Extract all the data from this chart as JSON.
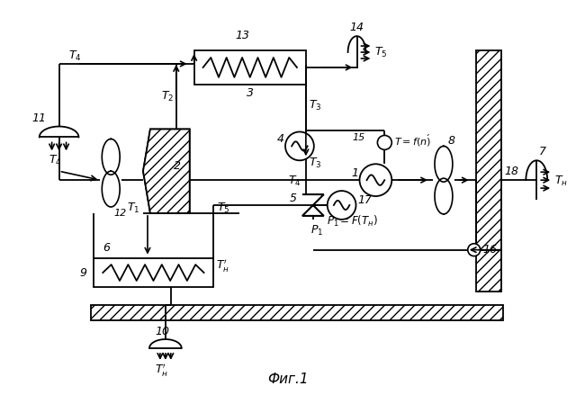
{
  "caption": "Фиг.1",
  "bg_color": "#ffffff",
  "line_color": "#000000",
  "figsize": [
    6.4,
    4.49
  ],
  "dpi": 100
}
